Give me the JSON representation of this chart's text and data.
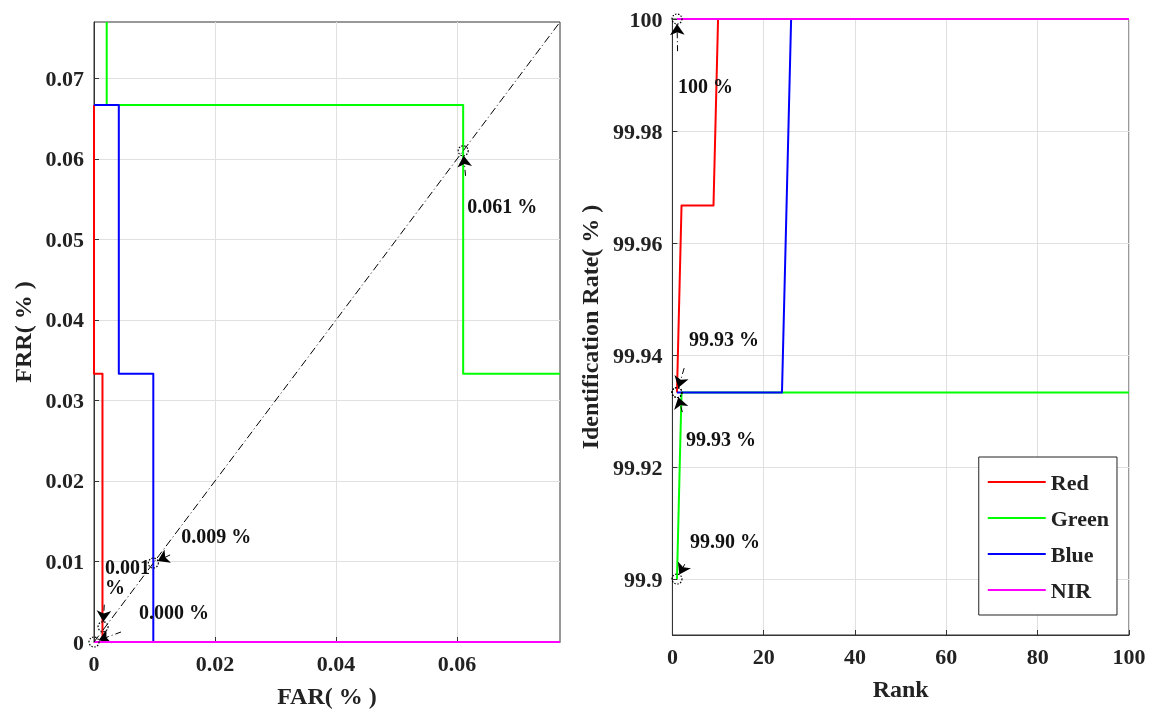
{
  "chart_data": [
    {
      "type": "line",
      "xlabel": "FAR( % )",
      "ylabel": "FRR( % )",
      "xlim": [
        0,
        0.077
      ],
      "ylim": [
        0,
        0.077
      ],
      "xticks": [
        0,
        0.02,
        0.04,
        0.06
      ],
      "yticks": [
        0,
        0.01,
        0.02,
        0.03,
        0.04,
        0.05,
        0.06,
        0.07
      ],
      "grid": true,
      "legend": false,
      "series": [
        {
          "color": "#ff0000",
          "x": [
            0,
            0,
            0.0014,
            0.0014,
            0.077
          ],
          "values": [
            0.0667,
            0.0333,
            0.0333,
            0,
            0
          ]
        },
        {
          "color": "#00ff00",
          "x": [
            0.0021,
            0.0021,
            0.061,
            0.061,
            0.077
          ],
          "values": [
            0.077,
            0.0667,
            0.0667,
            0.0333,
            0.0333
          ]
        },
        {
          "color": "#0000ff",
          "x": [
            0,
            0.0041,
            0.0041,
            0.0098,
            0.0098,
            0.077
          ],
          "values": [
            0.0667,
            0.0667,
            0.0333,
            0.0333,
            0,
            0
          ]
        },
        {
          "color": "#ff00ff",
          "x": [
            0,
            0.077
          ],
          "values": [
            0,
            0
          ]
        },
        {
          "color": "#000000",
          "line_style": "dashed",
          "x": [
            0,
            0.077
          ],
          "values": [
            0,
            0.077
          ]
        }
      ],
      "annotations": [
        {
          "text": "0.061 %",
          "x": 0.061,
          "y": 0.061
        },
        {
          "text": "0.009 %",
          "x": 0.0098,
          "y": 0.0098
        },
        {
          "text": "0.001 %",
          "x": 0.0015,
          "y": 0.0019
        },
        {
          "text": "0.000 %",
          "x": 0,
          "y": 0
        }
      ]
    },
    {
      "type": "line",
      "xlabel": "Rank",
      "ylabel": "Identification Rate( % )",
      "xlim": [
        0,
        100
      ],
      "ylim": [
        99.89,
        100
      ],
      "xticks": [
        0,
        20,
        40,
        60,
        80,
        100
      ],
      "yticks": [
        99.9,
        99.92,
        99.94,
        99.96,
        99.98,
        100
      ],
      "grid": true,
      "legend": "bottom right",
      "series": [
        {
          "name": "Red",
          "color": "#ff0000",
          "x": [
            1,
            2,
            9,
            10
          ],
          "values": [
            99.9333,
            99.9667,
            99.9667,
            100
          ]
        },
        {
          "name": "Green",
          "color": "#00ff00",
          "x": [
            1,
            2,
            100
          ],
          "values": [
            99.9,
            99.9333,
            99.9333
          ]
        },
        {
          "name": "Blue",
          "color": "#0000ff",
          "x": [
            1,
            24,
            26
          ],
          "values": [
            99.9333,
            99.9333,
            100
          ]
        },
        {
          "name": "NIR",
          "color": "#ff00ff",
          "x": [
            1,
            100
          ],
          "values": [
            100,
            100
          ]
        }
      ],
      "annotations": [
        {
          "text": "100 %",
          "x": 1,
          "y": 100
        },
        {
          "text": "99.93 %",
          "x": 1,
          "y": 99.9333
        },
        {
          "text": "99.93 %",
          "x": 1,
          "y": 99.9333
        },
        {
          "text": "99.90 %",
          "x": 1,
          "y": 99.9
        }
      ]
    }
  ]
}
